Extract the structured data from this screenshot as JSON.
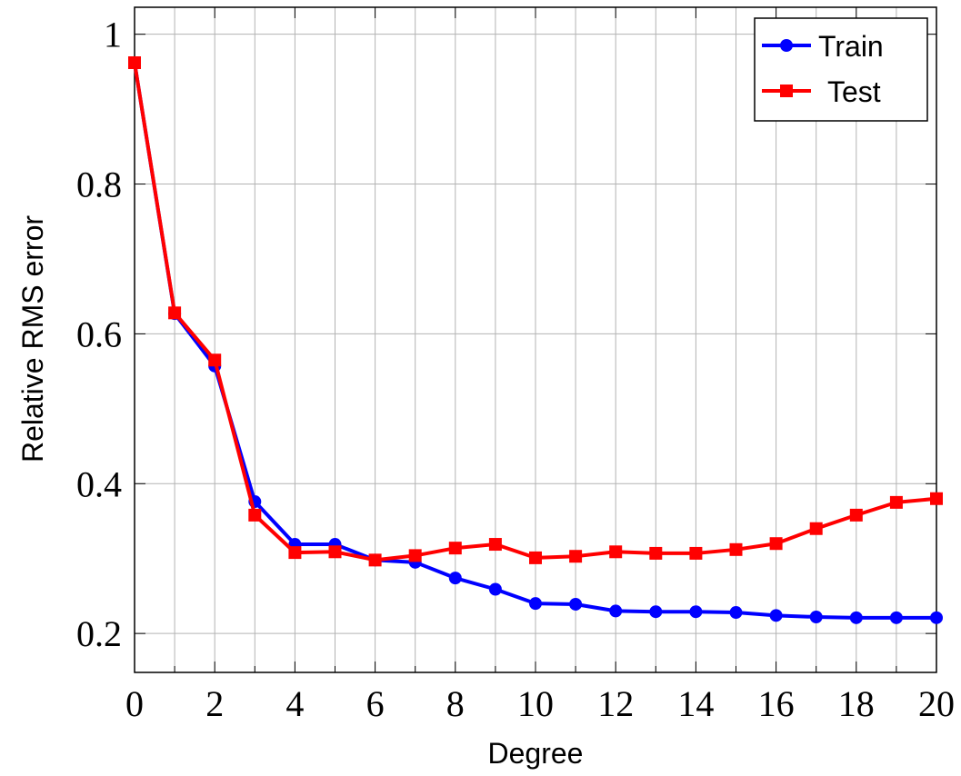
{
  "chart_data": {
    "type": "line",
    "x_label": "Degree",
    "y_label": "Relative RMS error",
    "x": [
      0,
      1,
      2,
      3,
      4,
      5,
      6,
      7,
      8,
      9,
      10,
      11,
      12,
      13,
      14,
      15,
      16,
      17,
      18,
      19,
      20
    ],
    "series": [
      {
        "name": "Train",
        "color": "#0000ff",
        "marker": "circle",
        "values": [
          0.962,
          0.627,
          0.557,
          0.376,
          0.319,
          0.319,
          0.298,
          0.295,
          0.274,
          0.259,
          0.24,
          0.239,
          0.23,
          0.229,
          0.229,
          0.228,
          0.224,
          0.222,
          0.221,
          0.221,
          0.221
        ]
      },
      {
        "name": "Test",
        "color": "#ff0000",
        "marker": "square",
        "values": [
          0.962,
          0.628,
          0.565,
          0.358,
          0.308,
          0.309,
          0.298,
          0.304,
          0.314,
          0.319,
          0.301,
          0.303,
          0.309,
          0.307,
          0.307,
          0.312,
          0.32,
          0.34,
          0.358,
          0.375,
          0.38
        ]
      }
    ],
    "xlim": [
      0,
      20
    ],
    "xticks": [
      0,
      2,
      4,
      6,
      8,
      10,
      12,
      14,
      16,
      18,
      20
    ],
    "xminorticks": [
      1,
      3,
      5,
      7,
      9,
      11,
      13,
      15,
      17,
      19
    ],
    "ylim": [
      0.148,
      1.036
    ],
    "yticks": [
      0.2,
      0.4,
      0.6,
      0.8,
      1
    ],
    "grid": true,
    "legend": "top-right"
  }
}
